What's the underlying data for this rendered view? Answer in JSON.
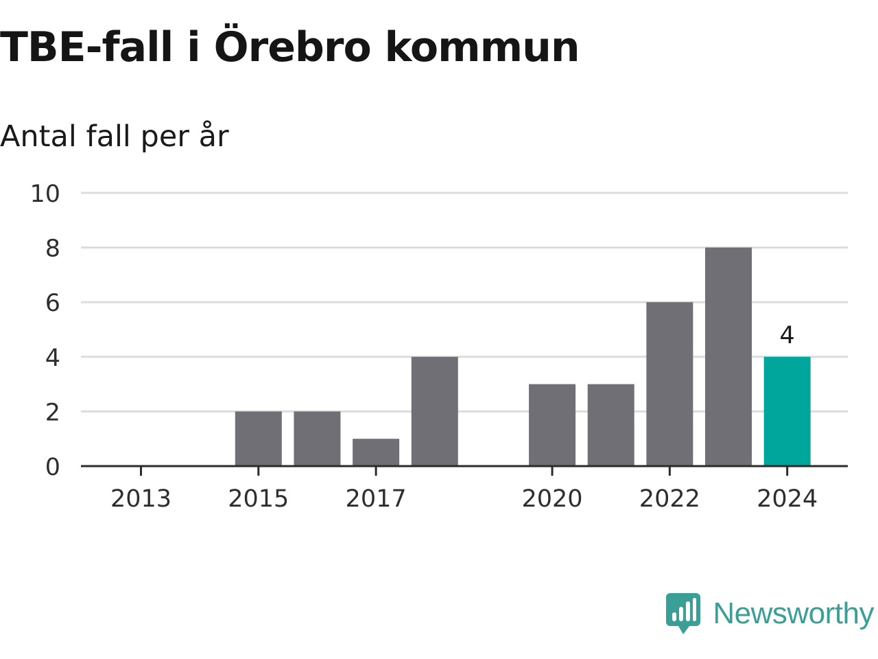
{
  "title": "TBE-fall i Örebro kommun",
  "subtitle": "Antal fall per år",
  "brand": "Newsworthy",
  "colors": {
    "bar": "#706f75",
    "highlight": "#00a59b",
    "grid": "#dcdcdc",
    "axis": "#2b2b2b",
    "brand": "#3a9f96"
  },
  "chart_data": {
    "type": "bar",
    "x": [
      2013,
      2014,
      2015,
      2016,
      2017,
      2018,
      2019,
      2020,
      2021,
      2022,
      2023,
      2024
    ],
    "values": [
      0,
      0,
      2,
      2,
      1,
      4,
      0,
      3,
      3,
      6,
      8,
      4
    ],
    "highlight": 2024,
    "data_labels": [
      {
        "x": 2024,
        "text": "4"
      }
    ],
    "x_tick_labels": [
      "2013",
      "2015",
      "2017",
      "2020",
      "2022",
      "2024"
    ],
    "y_ticks": [
      0,
      2,
      4,
      6,
      8,
      10
    ],
    "ylim": [
      0,
      10
    ],
    "xlabel": "",
    "ylabel": "",
    "grid": true
  }
}
